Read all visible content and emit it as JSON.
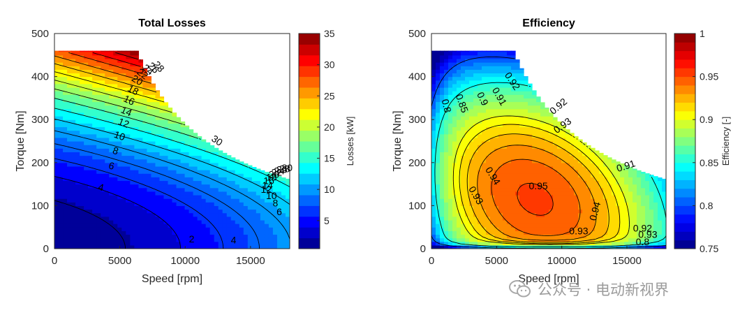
{
  "colors": {
    "axis": "#262626",
    "contour": "#000000"
  },
  "chart_data": [
    {
      "type": "heatmap",
      "title": "Total Losses",
      "xlabel": "Speed [rpm]",
      "ylabel": "Torque [Nm]",
      "xlim": [
        0,
        18000
      ],
      "ylim": [
        0,
        500
      ],
      "xticks": [
        0,
        5000,
        10000,
        15000
      ],
      "yticks": [
        0,
        100,
        200,
        300,
        400,
        500
      ],
      "colorbar": {
        "label": "Losses [kW]",
        "range": [
          0.5,
          35
        ],
        "ticks": [
          5,
          10,
          15,
          20,
          25,
          30,
          35
        ],
        "colormap": "jet"
      },
      "operating_envelope": {
        "max_torque": 460,
        "corner_speed": 6300,
        "max_speed": 18000,
        "torque_at_max_speed": 147
      },
      "contour_labels": [
        "2",
        "4",
        "4",
        "6",
        "8",
        "10",
        "12",
        "14",
        "16",
        "18",
        "20",
        "22",
        "24",
        "26",
        "28",
        "30",
        "12",
        "14",
        "16",
        "18",
        "20",
        "22",
        "24",
        "26",
        "28",
        "30",
        "10",
        "8",
        "6"
      ],
      "contour_levels": [
        2,
        4,
        6,
        8,
        10,
        12,
        14,
        16,
        18,
        20,
        22,
        24,
        26,
        28,
        30,
        32,
        34
      ]
    },
    {
      "type": "heatmap",
      "title": "Efficiency",
      "xlabel": "Speed [rpm]",
      "ylabel": "Torque [Nm]",
      "xlim": [
        0,
        18000
      ],
      "ylim": [
        0,
        500
      ],
      "xticks": [
        0,
        5000,
        10000,
        15000
      ],
      "yticks": [
        0,
        100,
        200,
        300,
        400,
        500
      ],
      "colorbar": {
        "label": "Efficiency [-]",
        "range": [
          0.75,
          1
        ],
        "ticks": [
          0.75,
          0.8,
          0.85,
          0.9,
          0.95,
          1
        ],
        "colormap": "jet"
      },
      "operating_envelope": {
        "max_torque": 460,
        "corner_speed": 6300,
        "max_speed": 18000,
        "torque_at_max_speed": 147
      },
      "peak": {
        "value": 0.95,
        "speed": 8000,
        "torque": 115
      },
      "contour_labels": [
        "0.8",
        "0.85",
        "0.9",
        "0.91",
        "0.92",
        "0.92",
        "0.93",
        "0.91",
        "0.94",
        "0.93",
        "0.95",
        "0.94",
        "0.93",
        "0.92",
        "0.93",
        "0.8"
      ],
      "contour_levels": [
        0.8,
        0.85,
        0.9,
        0.91,
        0.92,
        0.93,
        0.94,
        0.95
      ]
    }
  ],
  "watermark": {
    "text": "公众号 · 电动新视界",
    "icon": "wechat-logo-icon"
  }
}
